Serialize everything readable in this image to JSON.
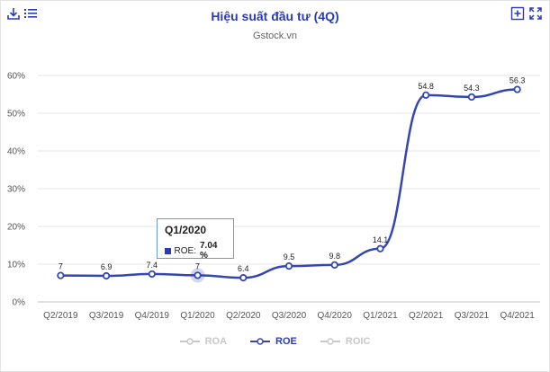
{
  "title": "Hiệu suất đầu tư (4Q)",
  "subtitle": "Gstock.vn",
  "icons": {
    "download": "download-icon",
    "menu": "menu-icon",
    "add": "plus-square-icon",
    "fullscreen": "expand-icon"
  },
  "colors": {
    "roe": "#3446b4",
    "inactive": "#c8c8c8",
    "title": "#2b3bb5"
  },
  "legend": [
    {
      "label": "ROA",
      "active": false
    },
    {
      "label": "ROE",
      "active": true
    },
    {
      "label": "ROIC",
      "active": false
    }
  ],
  "tooltip": {
    "title": "Q1/2020",
    "series_label": "ROE:",
    "value_text": "7.04 %",
    "point_index": 3
  },
  "chart_data": {
    "type": "line",
    "x": [
      "Q2/2019",
      "Q3/2019",
      "Q4/2019",
      "Q1/2020",
      "Q2/2020",
      "Q3/2020",
      "Q4/2020",
      "Q1/2021",
      "Q2/2021",
      "Q3/2021",
      "Q4/2021"
    ],
    "series": [
      {
        "name": "ROE",
        "values": [
          7,
          6.9,
          7.4,
          7.04,
          6.4,
          9.5,
          9.8,
          14.1,
          54.8,
          54.3,
          56.3
        ],
        "labels": [
          "7",
          "6.9",
          "7.4",
          "7",
          "6.4",
          "9.5",
          "9.8",
          "14.1",
          "54.8",
          "54.3",
          "56.3"
        ]
      }
    ],
    "y_ticks": [
      "0%",
      "10%",
      "20%",
      "30%",
      "40%",
      "50%",
      "60%"
    ],
    "ylim": [
      0,
      60
    ],
    "grid": true,
    "legend_position": "bottom"
  }
}
